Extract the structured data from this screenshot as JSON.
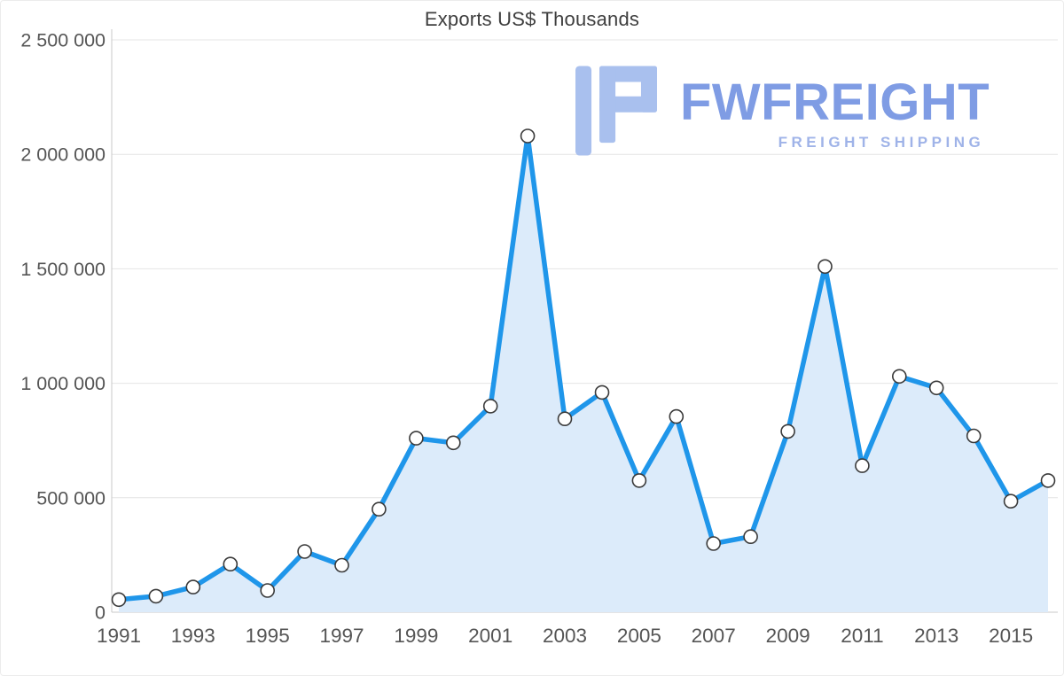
{
  "title": "Exports US$ Thousands",
  "watermark": {
    "brand": "FWFREIGHT",
    "tagline": "FREIGHT SHIPPING",
    "brand_color": "#7f9ce4",
    "tagline_color": "#9fb3e8",
    "icon_color": "#a9c0ee"
  },
  "chart_data": {
    "type": "line",
    "title": "Exports US$ Thousands",
    "xlabel": "",
    "ylabel": "",
    "x": [
      1991,
      1992,
      1993,
      1994,
      1995,
      1996,
      1997,
      1998,
      1999,
      2000,
      2001,
      2002,
      2003,
      2004,
      2005,
      2006,
      2007,
      2008,
      2009,
      2010,
      2011,
      2012,
      2013,
      2014,
      2015,
      2016
    ],
    "series": [
      {
        "name": "Exports US$ Thousands",
        "values": [
          55000,
          70000,
          110000,
          210000,
          95000,
          265000,
          205000,
          450000,
          760000,
          740000,
          900000,
          2080000,
          845000,
          960000,
          575000,
          855000,
          300000,
          330000,
          790000,
          1510000,
          640000,
          1030000,
          980000,
          770000,
          485000,
          575000
        ]
      }
    ],
    "ylim": [
      0,
      2500000
    ],
    "ytick_step": 500000,
    "ytick_labels": [
      "0",
      "500 000",
      "1 000 000",
      "1 500 000",
      "2 000 000",
      "2 500 000"
    ],
    "xticks": [
      1991,
      1993,
      1995,
      1997,
      1999,
      2001,
      2003,
      2005,
      2007,
      2009,
      2011,
      2013,
      2015
    ],
    "grid": "horizontal",
    "legend": "none",
    "line_color": "#1f96ea",
    "area_fill": "#dcebfa",
    "marker_fill": "#ffffff",
    "marker_stroke": "#3a3a3a",
    "grid_color": "#e4e4e4",
    "axis_color": "#c9c9c9",
    "tick_label_color": "#555555"
  }
}
